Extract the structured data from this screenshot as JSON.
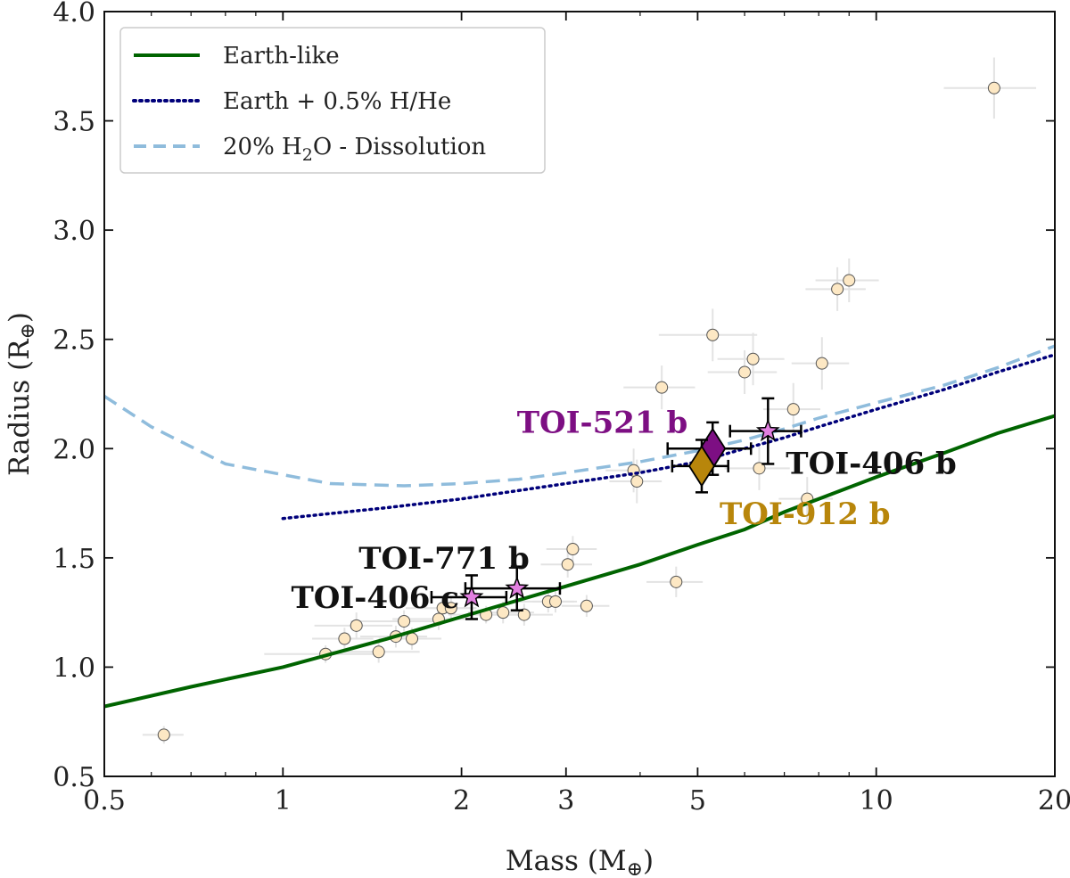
{
  "chart_data": {
    "type": "scatter",
    "xscale": "log",
    "xlim": [
      0.5,
      20
    ],
    "ylim": [
      0.5,
      4.0
    ],
    "xlabel": "Mass (M",
    "xlabel_sub": "⊕",
    "xlabel_close": ")",
    "ylabel": "Radius (R",
    "ylabel_sub": "⊕",
    "ylabel_close": ")",
    "xticks": [
      {
        "value": 0.5,
        "label": "0.5"
      },
      {
        "value": 1,
        "label": "1"
      },
      {
        "value": 2,
        "label": "2"
      },
      {
        "value": 3,
        "label": "3"
      },
      {
        "value": 5,
        "label": "5"
      },
      {
        "value": 10,
        "label": "10"
      },
      {
        "value": 20,
        "label": "20"
      }
    ],
    "yticks": [
      {
        "value": 0.5,
        "label": "0.5"
      },
      {
        "value": 1.0,
        "label": "1.0"
      },
      {
        "value": 1.5,
        "label": "1.5"
      },
      {
        "value": 2.0,
        "label": "2.0"
      },
      {
        "value": 2.5,
        "label": "2.5"
      },
      {
        "value": 3.0,
        "label": "3.0"
      },
      {
        "value": 3.5,
        "label": "3.5"
      },
      {
        "value": 4.0,
        "label": "4.0"
      }
    ],
    "curves": [
      {
        "name": "Earth-like",
        "color": "#006400",
        "style": "solid",
        "x": [
          0.5,
          0.7,
          1.0,
          1.5,
          2.0,
          3.0,
          4.0,
          5.0,
          6.0,
          7.0,
          8.0,
          10.0,
          13.0,
          16.0,
          20.0
        ],
        "y": [
          0.82,
          0.91,
          1.0,
          1.13,
          1.23,
          1.37,
          1.47,
          1.56,
          1.63,
          1.71,
          1.77,
          1.87,
          1.98,
          2.07,
          2.15
        ]
      },
      {
        "name": "Earth + 0.5% H/He",
        "color": "#00007a",
        "style": "dotted",
        "x": [
          1.0,
          1.5,
          2.0,
          3.0,
          4.0,
          5.0,
          6.0,
          7.0,
          8.0,
          10.0,
          13.0,
          16.0,
          20.0
        ],
        "y": [
          1.68,
          1.73,
          1.77,
          1.84,
          1.89,
          1.94,
          2.0,
          2.05,
          2.1,
          2.18,
          2.27,
          2.35,
          2.43
        ]
      },
      {
        "name": "20% H₂O - Dissolution",
        "name_parts": [
          "20% H",
          "2",
          "O - Dissolution"
        ],
        "color": "#8fbcdc",
        "style": "dashed",
        "x": [
          0.5,
          0.6,
          0.8,
          1.2,
          1.6,
          2.0,
          2.5,
          3.0,
          4.0,
          5.0,
          6.0,
          7.0,
          8.0,
          10.0,
          13.0,
          16.0,
          20.0
        ],
        "y": [
          2.24,
          2.1,
          1.93,
          1.84,
          1.83,
          1.84,
          1.86,
          1.89,
          1.94,
          1.99,
          2.04,
          2.09,
          2.14,
          2.21,
          2.29,
          2.37,
          2.47
        ]
      }
    ],
    "background_planets": [
      {
        "x": 0.63,
        "y": 0.69,
        "xerr": 0.05,
        "yerr": 0.04
      },
      {
        "x": 1.18,
        "y": 1.06,
        "xerr": 0.25,
        "yerr": 0.04
      },
      {
        "x": 1.27,
        "y": 1.13,
        "xerr": 0.15,
        "yerr": 0.05
      },
      {
        "x": 1.33,
        "y": 1.19,
        "xerr": 0.2,
        "yerr": 0.06
      },
      {
        "x": 1.45,
        "y": 1.07,
        "xerr": 0.25,
        "yerr": 0.05
      },
      {
        "x": 1.55,
        "y": 1.14,
        "xerr": 0.2,
        "yerr": 0.05
      },
      {
        "x": 1.6,
        "y": 1.21,
        "xerr": 0.3,
        "yerr": 0.05
      },
      {
        "x": 1.65,
        "y": 1.13,
        "xerr": 0.2,
        "yerr": 0.05
      },
      {
        "x": 1.83,
        "y": 1.22,
        "xerr": 0.3,
        "yerr": 0.05
      },
      {
        "x": 1.86,
        "y": 1.27,
        "xerr": 0.25,
        "yerr": 0.05
      },
      {
        "x": 1.92,
        "y": 1.27,
        "xerr": 0.2,
        "yerr": 0.05
      },
      {
        "x": 2.2,
        "y": 1.24,
        "xerr": 0.3,
        "yerr": 0.04
      },
      {
        "x": 2.35,
        "y": 1.25,
        "xerr": 0.3,
        "yerr": 0.05
      },
      {
        "x": 2.55,
        "y": 1.24,
        "xerr": 0.3,
        "yerr": 0.05
      },
      {
        "x": 2.8,
        "y": 1.3,
        "xerr": 0.3,
        "yerr": 0.05
      },
      {
        "x": 2.88,
        "y": 1.3,
        "xerr": 0.25,
        "yerr": 0.05
      },
      {
        "x": 3.02,
        "y": 1.47,
        "xerr": 0.3,
        "yerr": 0.06
      },
      {
        "x": 3.08,
        "y": 1.54,
        "xerr": 0.3,
        "yerr": 0.06
      },
      {
        "x": 3.25,
        "y": 1.28,
        "xerr": 0.3,
        "yerr": 0.05
      },
      {
        "x": 3.9,
        "y": 1.9,
        "xerr": 0.4,
        "yerr": 0.1
      },
      {
        "x": 3.95,
        "y": 1.85,
        "xerr": 0.4,
        "yerr": 0.1
      },
      {
        "x": 4.35,
        "y": 2.28,
        "xerr": 0.6,
        "yerr": 0.1
      },
      {
        "x": 4.6,
        "y": 1.39,
        "xerr": 0.5,
        "yerr": 0.07
      },
      {
        "x": 5.3,
        "y": 2.52,
        "xerr": 1.0,
        "yerr": 0.12
      },
      {
        "x": 6.0,
        "y": 2.35,
        "xerr": 0.8,
        "yerr": 0.1
      },
      {
        "x": 6.2,
        "y": 2.41,
        "xerr": 0.8,
        "yerr": 0.12
      },
      {
        "x": 6.35,
        "y": 1.91,
        "xerr": 0.8,
        "yerr": 0.1
      },
      {
        "x": 7.25,
        "y": 2.18,
        "xerr": 0.8,
        "yerr": 0.12
      },
      {
        "x": 7.65,
        "y": 1.77,
        "xerr": 0.8,
        "yerr": 0.1
      },
      {
        "x": 8.1,
        "y": 2.39,
        "xerr": 0.9,
        "yerr": 0.12
      },
      {
        "x": 8.6,
        "y": 2.73,
        "xerr": 1.0,
        "yerr": 0.1
      },
      {
        "x": 9.0,
        "y": 2.77,
        "xerr": 1.1,
        "yerr": 0.1
      },
      {
        "x": 15.8,
        "y": 3.65,
        "xerr": 2.8,
        "yerr": 0.14
      }
    ],
    "highlighted_planets": [
      {
        "name": "TOI-406 c",
        "marker": "star",
        "x": 2.08,
        "y": 1.32,
        "xerr": 0.3,
        "yerr": 0.1,
        "label_color": "#111111"
      },
      {
        "name": "TOI-771 b",
        "marker": "star",
        "x": 2.48,
        "y": 1.36,
        "xerr": 0.45,
        "yerr": 0.1,
        "label_color": "#111111"
      },
      {
        "name": "TOI-406 b",
        "marker": "star",
        "x": 6.57,
        "y": 2.08,
        "xerr": 0.9,
        "yerr": 0.15,
        "label_color": "#111111"
      },
      {
        "name": "TOI-521 b",
        "marker": "diamond",
        "x": 5.3,
        "y": 2.0,
        "xerr": 0.85,
        "yerr": 0.12,
        "color": "#7d0f83",
        "label_color": "#7d0f83"
      },
      {
        "name": "TOI-912 b",
        "marker": "diamond",
        "x": 5.08,
        "y": 1.92,
        "xerr": 0.55,
        "yerr": 0.12,
        "color": "#b8860b",
        "label_color": "#b8860b"
      }
    ],
    "legend": {
      "placement": "top-left"
    },
    "grid": false
  }
}
